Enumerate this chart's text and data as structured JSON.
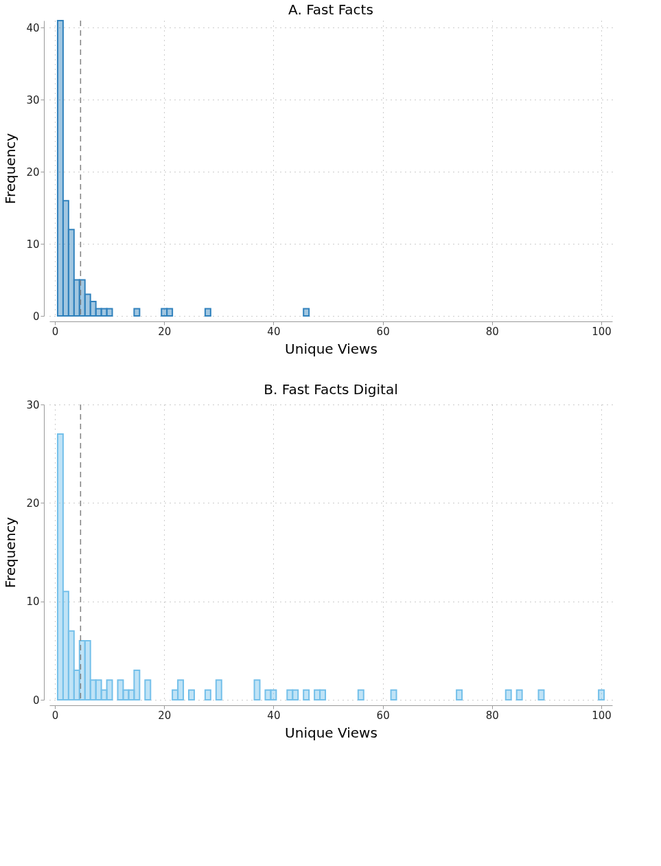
{
  "chart_data": [
    {
      "type": "histogram",
      "title": "A. Fast Facts",
      "xlabel": "Unique Views",
      "ylabel": "Frequency",
      "bins": [
        0.5,
        1.5,
        2.5,
        3.5,
        4.5,
        5.5,
        6.5,
        7.5,
        8.5,
        9.5,
        10.5,
        11.5,
        12.5,
        13.5,
        14.5,
        15.5,
        16.5,
        17.5,
        18.5,
        19.5,
        20.5,
        21.5,
        22.5,
        23.5,
        24.5,
        25.5,
        26.5,
        27.5,
        28.5,
        29.5,
        30.5,
        31.5,
        32.5,
        33.5,
        34.5,
        35.5,
        36.5,
        37.5,
        38.5,
        39.5,
        40.5,
        41.5,
        42.5,
        43.5,
        44.5,
        45.5,
        46.5
      ],
      "values": [
        41,
        16,
        12,
        5,
        5,
        3,
        2,
        1,
        1,
        1,
        0,
        0,
        0,
        0,
        1,
        0,
        0,
        0,
        0,
        1,
        1,
        0,
        0,
        0,
        0,
        0,
        0,
        1,
        0,
        0,
        0,
        0,
        0,
        0,
        0,
        0,
        0,
        0,
        0,
        0,
        0,
        0,
        0,
        0,
        0,
        1
      ],
      "color": "#3182bd",
      "xlim": [
        -1,
        102
      ],
      "ylim": [
        0,
        41
      ],
      "xticks": [
        0,
        20,
        40,
        60,
        80,
        100
      ],
      "yticks": [
        0,
        10,
        20,
        30,
        40
      ],
      "grid": true,
      "ref_lines": [
        {
          "axis": "x",
          "value": 4.7,
          "color": "#808080",
          "line_style": "dashed"
        }
      ]
    },
    {
      "type": "histogram",
      "title": "B. Fast Facts Digital",
      "xlabel": "Unique Views",
      "ylabel": "Frequency",
      "bins": [
        0.5,
        1.5,
        2.5,
        3.5,
        4.5,
        5.5,
        6.5,
        7.5,
        8.5,
        9.5,
        10.5,
        11.5,
        12.5,
        13.5,
        14.5,
        15.5,
        16.5,
        17.5,
        18.5,
        19.5,
        20.5,
        21.5,
        22.5,
        23.5,
        24.5,
        25.5,
        26.5,
        27.5,
        28.5,
        29.5,
        30.5,
        31.5,
        32.5,
        33.5,
        34.5,
        35.5,
        36.5,
        37.5,
        38.5,
        39.5,
        40.5,
        41.5,
        42.5,
        43.5,
        44.5,
        45.5,
        46.5,
        47.5,
        48.5,
        49.5,
        50.5,
        51.5,
        52.5,
        53.5,
        54.5,
        55.5,
        56.5,
        57.5,
        58.5,
        59.5,
        60.5,
        61.5,
        62.5,
        63.5,
        64.5,
        65.5,
        66.5,
        67.5,
        68.5,
        69.5,
        70.5,
        71.5,
        72.5,
        73.5,
        74.5,
        75.5,
        76.5,
        77.5,
        78.5,
        79.5,
        80.5,
        81.5,
        82.5,
        83.5,
        84.5,
        85.5,
        86.5,
        87.5,
        88.5,
        89.5,
        90.5,
        91.5,
        92.5,
        93.5,
        94.5,
        95.5,
        96.5,
        97.5,
        98.5,
        99.5,
        100.5
      ],
      "values": [
        27,
        11,
        7,
        3,
        6,
        6,
        2,
        2,
        1,
        2,
        0,
        2,
        1,
        1,
        3,
        0,
        2,
        0,
        0,
        0,
        0,
        1,
        2,
        0,
        1,
        0,
        0,
        1,
        0,
        2,
        0,
        0,
        0,
        0,
        0,
        0,
        2,
        0,
        1,
        1,
        0,
        0,
        1,
        1,
        0,
        1,
        0,
        1,
        1,
        0,
        0,
        0,
        0,
        0,
        0,
        1,
        0,
        0,
        0,
        0,
        0,
        1,
        0,
        0,
        0,
        0,
        0,
        0,
        0,
        0,
        0,
        0,
        0,
        1,
        0,
        0,
        0,
        0,
        0,
        0,
        0,
        0,
        1,
        0,
        1,
        0,
        0,
        0,
        1,
        0,
        0,
        0,
        0,
        0,
        0,
        0,
        0,
        0,
        0,
        1
      ],
      "color": "#74c0ea",
      "xlim": [
        -1,
        102
      ],
      "ylim": [
        0,
        30
      ],
      "xticks": [
        0,
        20,
        40,
        60,
        80,
        100
      ],
      "yticks": [
        0,
        10,
        20,
        30
      ],
      "grid": true,
      "ref_lines": [
        {
          "axis": "x",
          "value": 4.7,
          "color": "#808080",
          "line_style": "dashed"
        }
      ]
    }
  ]
}
